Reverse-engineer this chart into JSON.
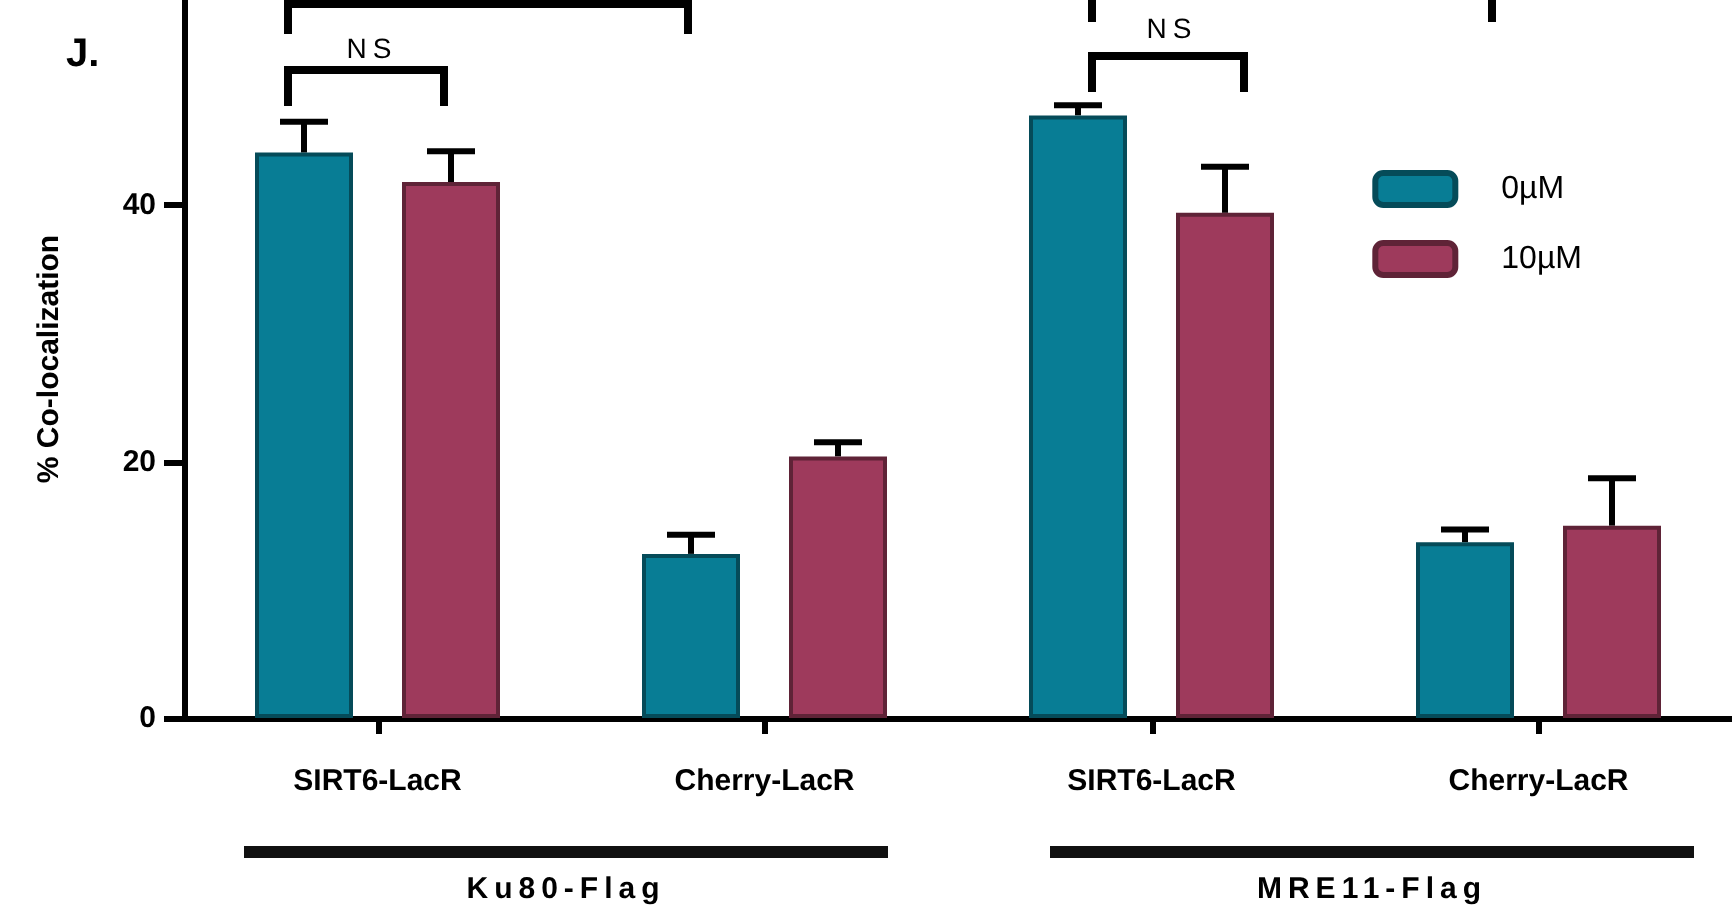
{
  "chart_data": {
    "type": "bar",
    "title": "J.",
    "ylabel": "% Co-localization",
    "categories": [
      "SIRT6-LacR",
      "Cherry-LacR",
      "SIRT6-LacR",
      "Cherry-LacR"
    ],
    "series": [
      {
        "name": "0µM",
        "color": "#087d95",
        "values": [
          44.1,
          12.8,
          47.0,
          13.7
        ],
        "errors": [
          [
            44.1,
            46.5
          ],
          [
            12.8,
            14.3
          ],
          [
            47.0,
            47.8
          ],
          [
            13.7,
            14.7
          ]
        ]
      },
      {
        "name": "10µM",
        "color": "#9e3a5c",
        "values": [
          41.8,
          20.4,
          39.4,
          15.0
        ],
        "errors": [
          [
            41.8,
            44.2
          ],
          [
            20.4,
            21.5
          ],
          [
            39.4,
            43.0
          ],
          [
            15.0,
            18.7
          ]
        ]
      }
    ],
    "ylim": [
      0,
      56
    ],
    "yticks": [
      0,
      20,
      40
    ],
    "grid": false,
    "legend": "top right",
    "annotations": [
      "NS",
      "NS",
      "Ku80-Flag",
      "MRE11-Flag"
    ]
  }
}
